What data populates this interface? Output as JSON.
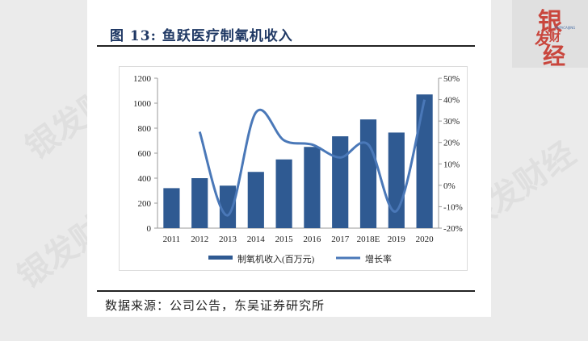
{
  "figure": {
    "title": "图 13:  鱼跃医疗制氧机收入",
    "source": "数据来源：公司公告，东吴证券研究所"
  },
  "logo": {
    "chars": [
      "银",
      "发",
      "财",
      "经"
    ],
    "subtitle": "YINFACAIJING"
  },
  "watermark": {
    "text": "银发财经"
  },
  "chart_data": {
    "type": "bar+line",
    "title": "图 13: 鱼跃医疗制氧机收入",
    "categories": [
      "2011",
      "2012",
      "2013",
      "2014",
      "2015",
      "2016",
      "2017",
      "2018E",
      "2019",
      "2020"
    ],
    "series": [
      {
        "name": "制氧机收入(百万元)",
        "type": "bar",
        "axis": "left",
        "values": [
          320,
          400,
          340,
          450,
          550,
          650,
          735,
          870,
          765,
          1070
        ]
      },
      {
        "name": "增长率",
        "type": "line",
        "axis": "right",
        "unit": "%",
        "values": [
          null,
          25,
          -14,
          34,
          21,
          19,
          13,
          19,
          -12,
          40
        ]
      }
    ],
    "left_axis": {
      "ylim": [
        0,
        1200
      ],
      "ticks": [
        "0",
        "200",
        "400",
        "600",
        "800",
        "1000",
        "1200"
      ]
    },
    "right_axis": {
      "ylim": [
        -20,
        50
      ],
      "ticks": [
        "-20%",
        "-10%",
        "0%",
        "10%",
        "20%",
        "30%",
        "40%",
        "50%"
      ]
    },
    "legend": {
      "position": "bottom",
      "entries": [
        "制氧机收入(百万元)",
        "增长率"
      ]
    },
    "grid": false,
    "colors": {
      "bar": "#2f5a92",
      "line": "#4a78b8"
    }
  }
}
